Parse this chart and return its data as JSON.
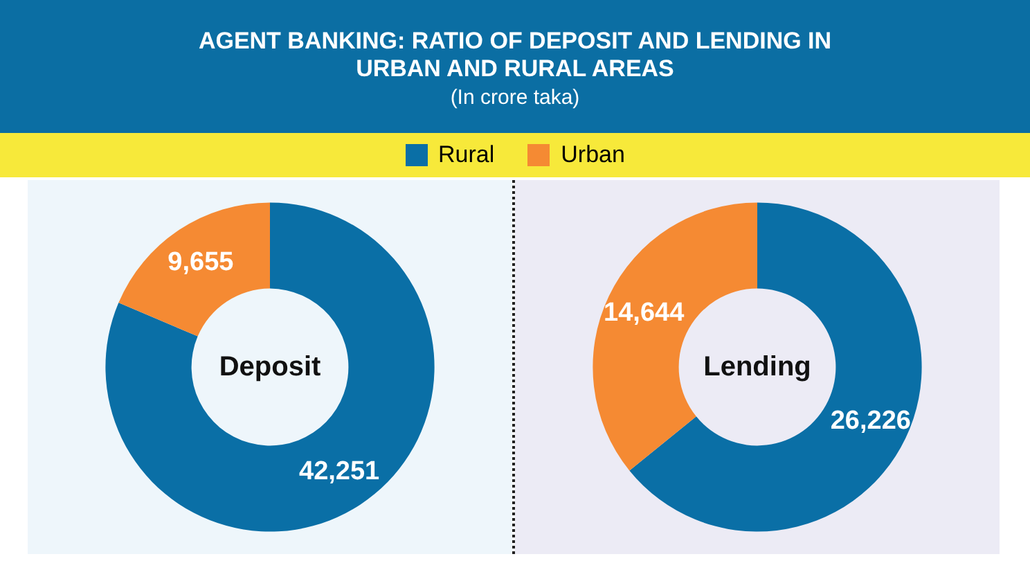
{
  "chart_data": [
    {
      "type": "donut",
      "title": "AGENT BANKING: RATIO OF DEPOSIT AND LENDING IN URBAN AND RURAL AREAS",
      "subtitle": "(In crore taka)",
      "legend": "top",
      "categories": [
        "Rural",
        "Urban"
      ],
      "values": [
        42251,
        9655
      ],
      "value_labels": [
        "42,251",
        "9,655"
      ],
      "colors": [
        "#0a6fa6",
        "#f58a33"
      ],
      "annotations": [
        "Deposit"
      ]
    },
    {
      "type": "donut",
      "categories": [
        null,
        null
      ],
      "values": [
        26226,
        14644
      ],
      "value_labels": [
        "26,226",
        "14,644"
      ],
      "colors": [
        "#0a6fa6",
        "#f58a33"
      ],
      "annotations": [
        "Lending"
      ]
    }
  ]
}
